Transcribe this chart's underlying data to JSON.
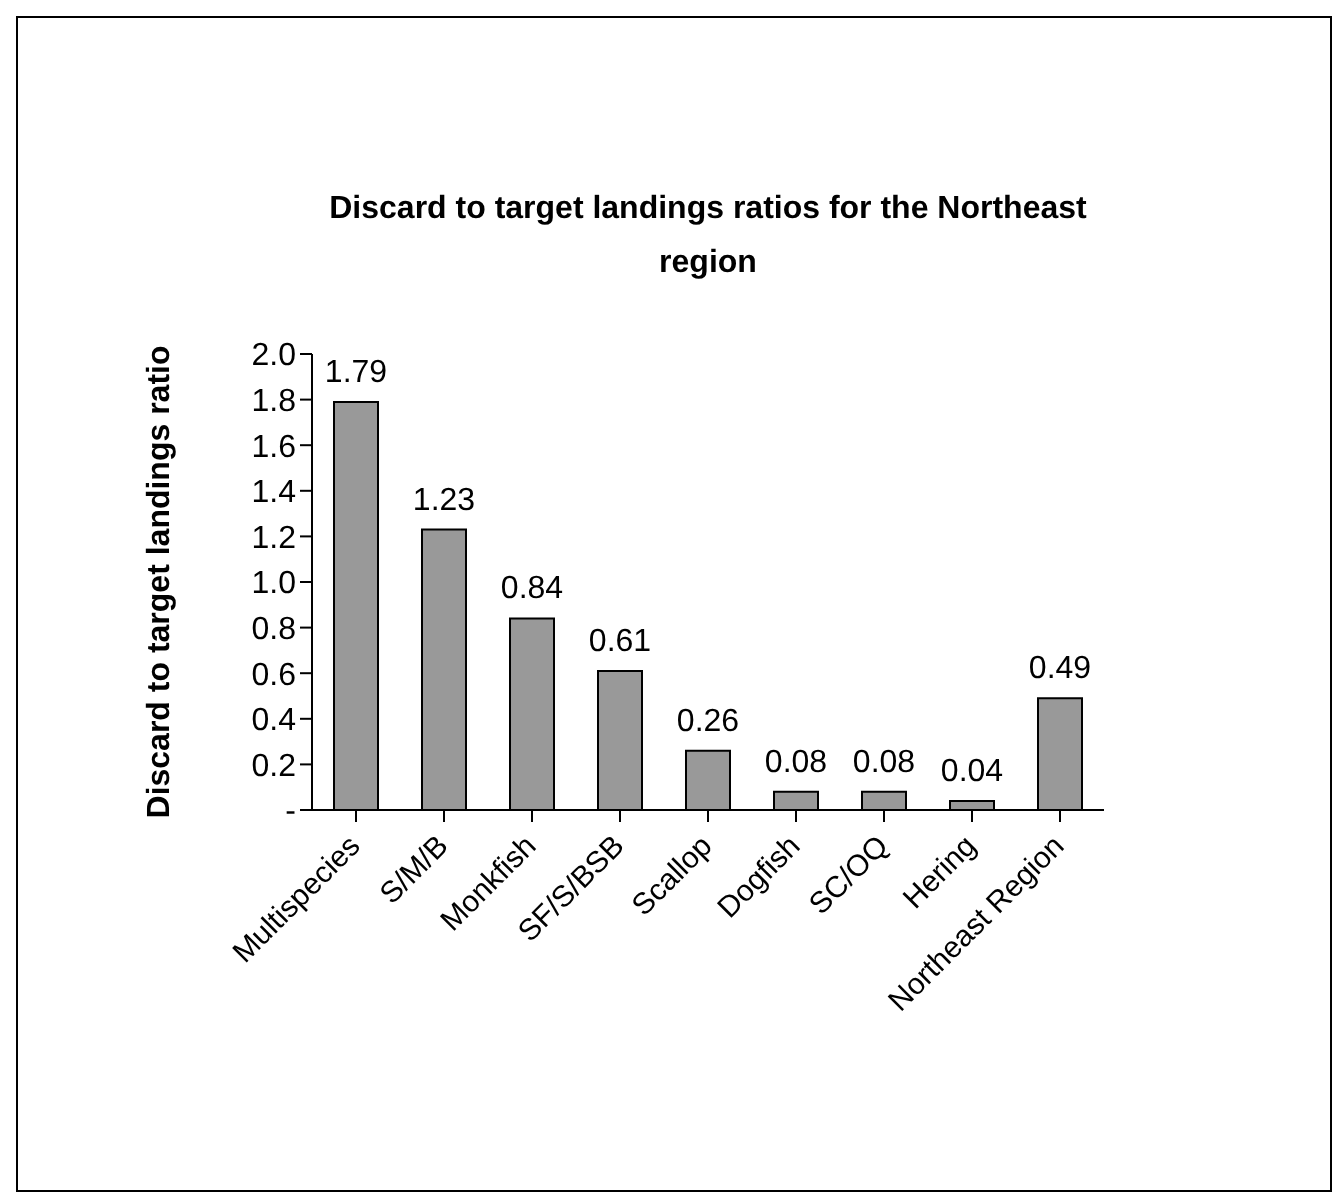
{
  "chart_data": {
    "type": "bar",
    "title": "Discard to target landings ratios for the Northeast region",
    "ylabel": "Discard to target landings ratio",
    "categories": [
      "Multispecies",
      "S/M/B",
      "Monkfish",
      "SF/S/BSB",
      "Scallop",
      "Dogfish",
      "SC/OQ",
      "Hering",
      "Northeast Region"
    ],
    "values": [
      1.79,
      1.23,
      0.84,
      0.61,
      0.26,
      0.08,
      0.08,
      0.04,
      0.49
    ],
    "color": "#999999",
    "ylim": [
      0,
      2
    ],
    "yticks": [
      {
        "value": 0,
        "label": "-"
      },
      {
        "value": 0.2,
        "label": "0.2"
      },
      {
        "value": 0.4,
        "label": "0.4"
      },
      {
        "value": 0.6,
        "label": "0.6"
      },
      {
        "value": 0.8,
        "label": "0.8"
      },
      {
        "value": 1,
        "label": "1.0"
      },
      {
        "value": 1.2,
        "label": "1.2"
      },
      {
        "value": 1.4,
        "label": "1.4"
      },
      {
        "value": 1.6,
        "label": "1.6"
      },
      {
        "value": 1.8,
        "label": "1.8"
      },
      {
        "value": 2,
        "label": "2.0"
      }
    ],
    "grid": false,
    "legend": false,
    "data_labels": true
  }
}
